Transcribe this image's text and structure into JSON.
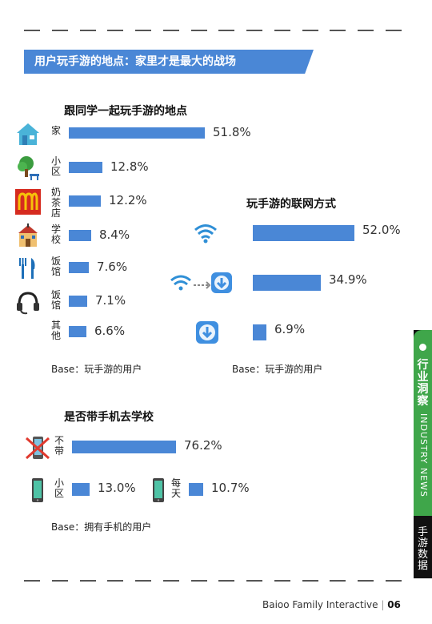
{
  "banner": {
    "title": "用户玩手游的地点：家里才是最大的战场"
  },
  "chart_data": [
    {
      "type": "bar",
      "title": "跟同学一起玩手游的地点",
      "categories": [
        "家",
        "小区",
        "奶茶店",
        "学校",
        "饭馆",
        "饭馆",
        "其他"
      ],
      "values": [
        51.8,
        12.8,
        12.2,
        8.4,
        7.6,
        7.1,
        6.6
      ],
      "value_labels": [
        "51.8%",
        "12.8%",
        "12.2%",
        "8.4%",
        "7.6%",
        "7.1%",
        "6.6%"
      ],
      "icons": [
        "house-icon",
        "park-tree-icon",
        "mcdonalds-icon",
        "school-icon",
        "fork-knife-icon",
        "headset-icon",
        "none"
      ],
      "note": "Base：玩手游的用户",
      "bar_color": "#4a87d6"
    },
    {
      "type": "bar",
      "title": "玩手游的联网方式",
      "categories": [
        "",
        "",
        ""
      ],
      "values": [
        52.0,
        34.9,
        6.9
      ],
      "value_labels": [
        "52.0%",
        "34.9%",
        "6.9%"
      ],
      "icons": [
        "wifi-icon",
        "wifi-to-download-icon",
        "download-app-icon"
      ],
      "note": "Base：玩手游的用户",
      "bar_color": "#4a87d6"
    },
    {
      "type": "bar",
      "title": "是否带手机去学校",
      "categories": [
        "不带",
        "小区",
        "每天"
      ],
      "values": [
        76.2,
        13.0,
        10.7
      ],
      "value_labels": [
        "76.2%",
        "13.0%",
        "10.7%"
      ],
      "icons": [
        "no-phone-icon",
        "phone-icon",
        "phone-icon"
      ],
      "note": "Base：拥有手机的用户",
      "bar_color": "#4a87d6"
    }
  ],
  "side_tab": {
    "title": "行业洞察",
    "subtitle": "INDUSTRY NEWS",
    "section": "手游数据"
  },
  "footer": {
    "company": "Baioo Family Interactive",
    "page": "06"
  },
  "colors": {
    "accent": "#4a87d6",
    "green": "#3fa64a",
    "dark": "#111111"
  }
}
